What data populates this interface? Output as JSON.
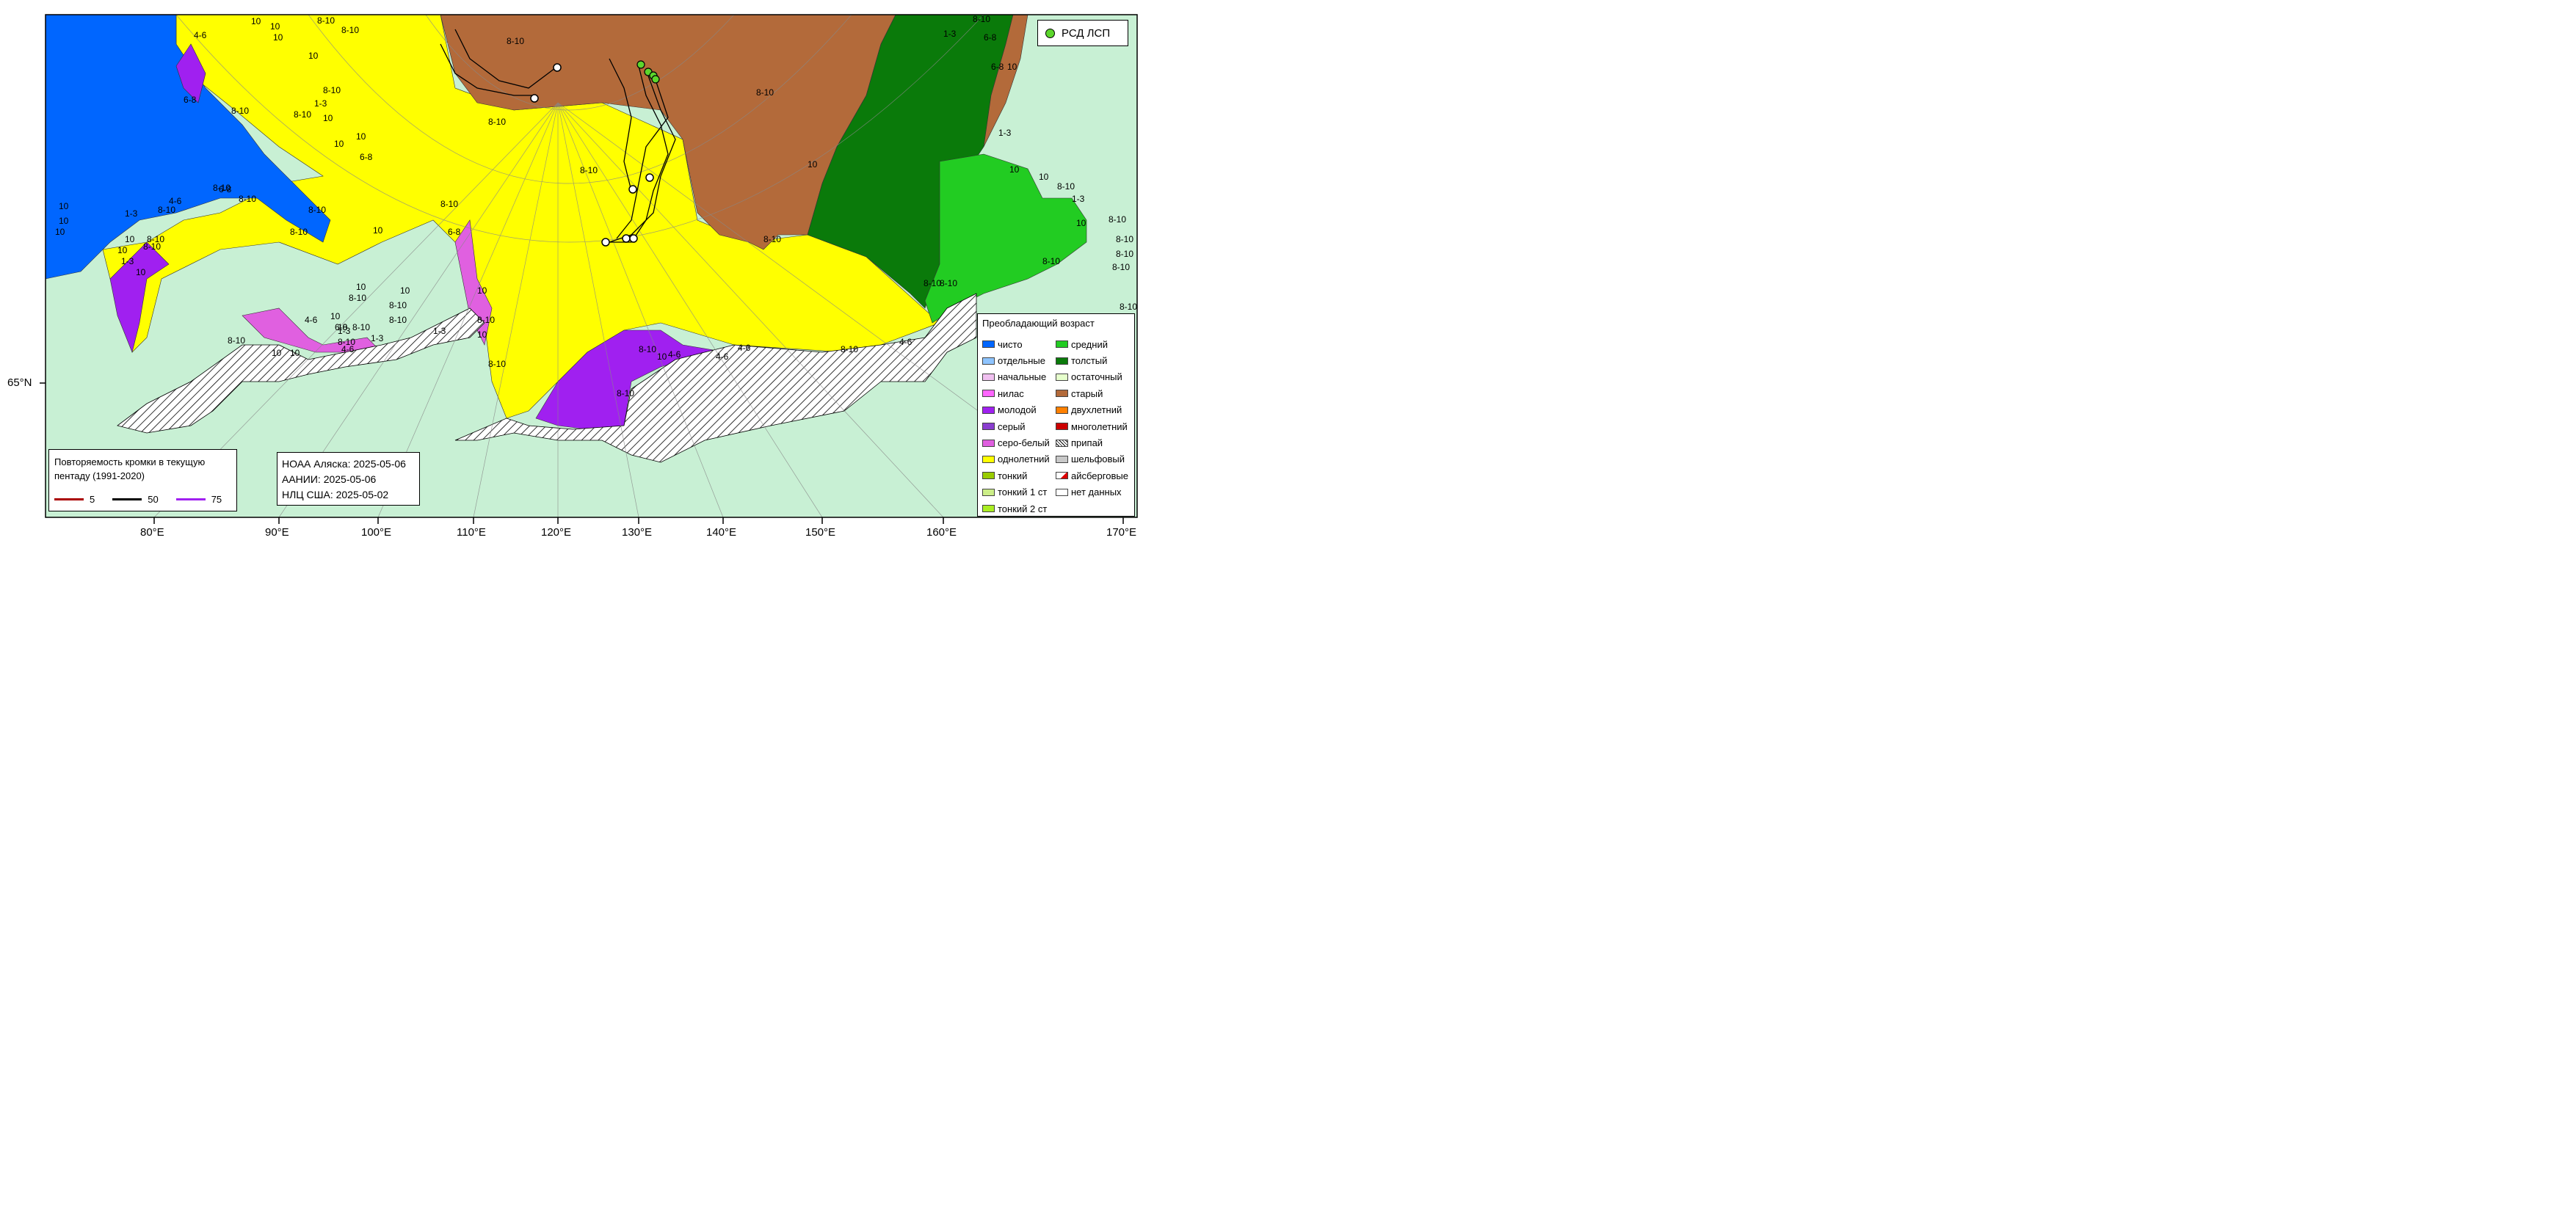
{
  "map": {
    "colors": {
      "land": "#c8f0d4",
      "open_water": "#0066ff",
      "separate": "#8ec4ff",
      "new_ice": "#f0c0f0",
      "nilas": "#ff66ff",
      "young": "#a020f0",
      "grey": "#8a3dcf",
      "grey_white": "#e060e0",
      "first_year": "#ffff00",
      "thin": "#99cc00",
      "medium": "#22cc22",
      "thick": "#0a7a0a",
      "residual": "#e6ffcc",
      "old": "#b36a3a",
      "fast_ice": "#ffffff"
    },
    "lat_labels": [
      {
        "text": "65°N"
      }
    ],
    "lon_labels": [
      {
        "text": "80°E"
      },
      {
        "text": "90°E"
      },
      {
        "text": "100°E"
      },
      {
        "text": "110°E"
      },
      {
        "text": "120°E"
      },
      {
        "text": "130°E"
      },
      {
        "text": "140°E"
      },
      {
        "text": "150°E"
      },
      {
        "text": "160°E"
      },
      {
        "text": "170°E"
      }
    ],
    "concentration_labels": [
      "4-6",
      "10",
      "8-10",
      "10",
      "10",
      "10",
      "6-8",
      "8-10",
      "8-10",
      "8-10",
      "8-10",
      "10",
      "1-3",
      "10",
      "10",
      "6-8",
      "8-10",
      "8-10",
      "8-10",
      "8-10",
      "10",
      "8-10",
      "10",
      "8-10",
      "10",
      "1-3",
      "10",
      "10",
      "1-3",
      "10",
      "4-6",
      "6-8",
      "8-10",
      "10",
      "6-8",
      "8-10",
      "8-10",
      "8-10",
      "10",
      "8-10",
      "8-10",
      "10",
      "10",
      "10",
      "4-6",
      "6-8",
      "8-10",
      "10",
      "8-10",
      "8-10",
      "8-10",
      "8-10",
      "1-3",
      "10",
      "8-10",
      "10",
      "10",
      "8-10",
      "4-6",
      "10",
      "1-3",
      "1-3",
      "4-6",
      "8-10",
      "8-10",
      "4-6",
      "4-6",
      "8-10",
      "4-6",
      "8-10",
      "10",
      "8-10",
      "1-3",
      "8-10",
      "6-8",
      "1-3",
      "6-8",
      "10",
      "10",
      "10",
      "8-10",
      "8-10",
      "10",
      "8-10",
      "8-10",
      "8-10",
      "8-10",
      "8-10",
      "8-10",
      "1-3",
      "8-10"
    ]
  },
  "legend_ice": {
    "title": "Преобладающий возраст",
    "left_items": [
      {
        "label": "чисто",
        "color": "#0066ff"
      },
      {
        "label": "отдельные",
        "color": "#8ec4ff"
      },
      {
        "label": "начальные",
        "color": "#f0c0f0"
      },
      {
        "label": "нилас",
        "color": "#ff66ff"
      },
      {
        "label": "молодой",
        "color": "#a020f0"
      },
      {
        "label": "серый",
        "color": "#8a3dcf"
      },
      {
        "label": "серо-белый",
        "color": "#e060e0"
      },
      {
        "label": "однолетний",
        "color": "#ffff00"
      },
      {
        "label": "тонкий",
        "color": "#99cc00"
      },
      {
        "label": "тонкий 1 ст",
        "color": "#ccee88"
      },
      {
        "label": "тонкий 2 ст",
        "color": "#aaee22"
      }
    ],
    "right_items": [
      {
        "label": "средний",
        "color": "#22cc22"
      },
      {
        "label": "толстый",
        "color": "#0a7a0a"
      },
      {
        "label": "остаточный",
        "color": "#e6ffcc"
      },
      {
        "label": "старый",
        "color": "#b36a3a"
      },
      {
        "label": "двухлетний",
        "color": "#ff8000"
      },
      {
        "label": "многолетний",
        "color": "#cc0000"
      },
      {
        "label": "припай",
        "color": "#ffffff"
      },
      {
        "label": "шельфовый",
        "color": "#c8c8c8"
      },
      {
        "label": "айсберговые",
        "color": "#ffffff"
      },
      {
        "label": "нет данных",
        "color": "#ffffff"
      }
    ]
  },
  "legend_rsd": {
    "label": "РСД ЛСП",
    "color": "#5cd62c"
  },
  "legend_repeat": {
    "title": "Повторяемость кромки в текущую пентаду (1991-2020)",
    "items": [
      {
        "label": "5",
        "color": "#aa0000"
      },
      {
        "label": "50",
        "color": "#000000"
      },
      {
        "label": "75",
        "color": "#a020f0"
      }
    ]
  },
  "sources": {
    "noaa": "НОАА Аляска: 2025-05-06",
    "aari": "ААНИИ: 2025-05-06",
    "nic": "НЛЦ США: 2025-05-02"
  }
}
